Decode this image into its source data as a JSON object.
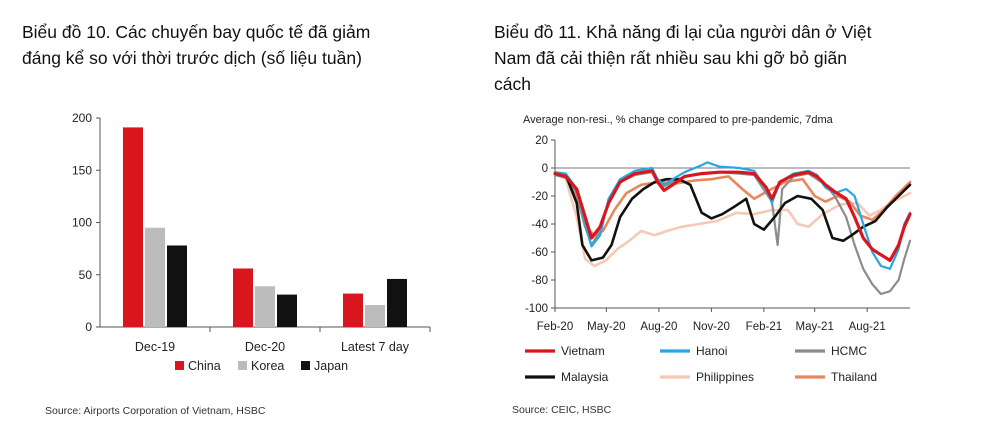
{
  "headings": {
    "left_line1": "Biểu đồ 10. Các chuyến bay quốc tế đã giảm",
    "left_line2": "đáng kể so với thời trước dịch (số liệu tuần)",
    "right_line1": "Biểu đồ 11. Khả năng đi lại của người dân ở Việt",
    "right_line2": "Nam đã cải thiện rất nhiều sau khi gỡ bỏ giãn",
    "right_line3": "cách"
  },
  "sources": {
    "left": "Source: Airports Corporation of Vietnam, HSBC",
    "right": "Source: CEIC, HSBC"
  },
  "colors": {
    "china": "#d9151e",
    "korea": "#bcbcbc",
    "japan": "#111111",
    "vietnam": "#d9151e",
    "hanoi": "#29a8e0",
    "hcmc": "#8c8c8c",
    "malaysia": "#111111",
    "philippines": "#f5c9b5",
    "thailand": "#e9875c"
  },
  "chart_data": [
    {
      "type": "bar",
      "categories": [
        "Dec-19",
        "Dec-20",
        "Latest 7 day"
      ],
      "series": [
        {
          "name": "China",
          "color": "#d9151e",
          "values": [
            191,
            56,
            32
          ]
        },
        {
          "name": "Korea",
          "color": "#bcbcbc",
          "values": [
            95,
            39,
            21
          ]
        },
        {
          "name": "Japan",
          "color": "#111111",
          "values": [
            78,
            31,
            46
          ]
        }
      ],
      "ylim": [
        0,
        200
      ],
      "yticks": [
        "0",
        "50",
        "100",
        "150",
        "200"
      ],
      "legend": "bottom"
    },
    {
      "type": "line",
      "subtitle": "Average non-resi., % change compared to pre-pandemic, 7dma",
      "x_ticks": [
        "Feb-20",
        "May-20",
        "Aug-20",
        "Nov-20",
        "Feb-21",
        "May-21",
        "Aug-21"
      ],
      "yticks": [
        "-100",
        "-80",
        "-60",
        "-40",
        "-20",
        "0",
        "20"
      ],
      "ylim": [
        -100,
        20
      ],
      "xlim": [
        "2020-02-01",
        "2021-10-15"
      ],
      "legend": "bottom",
      "series": [
        {
          "name": "Vietnam",
          "color": "#d9151e",
          "width": 3.2,
          "points": [
            [
              "2020-02-01",
              -4
            ],
            [
              "2020-02-20",
              -6
            ],
            [
              "2020-03-10",
              -15
            ],
            [
              "2020-03-25",
              -35
            ],
            [
              "2020-04-05",
              -50
            ],
            [
              "2020-04-20",
              -42
            ],
            [
              "2020-05-05",
              -25
            ],
            [
              "2020-05-25",
              -10
            ],
            [
              "2020-06-20",
              -4
            ],
            [
              "2020-07-20",
              -2
            ],
            [
              "2020-07-30",
              -10
            ],
            [
              "2020-08-10",
              -16
            ],
            [
              "2020-08-25",
              -12
            ],
            [
              "2020-09-15",
              -6
            ],
            [
              "2020-10-15",
              -4
            ],
            [
              "2020-11-15",
              -3
            ],
            [
              "2020-12-20",
              -3
            ],
            [
              "2021-01-15",
              -4
            ],
            [
              "2021-02-05",
              -14
            ],
            [
              "2021-02-15",
              -22
            ],
            [
              "2021-03-01",
              -10
            ],
            [
              "2021-03-25",
              -5
            ],
            [
              "2021-04-20",
              -3
            ],
            [
              "2021-05-05",
              -6
            ],
            [
              "2021-05-20",
              -12
            ],
            [
              "2021-06-05",
              -17
            ],
            [
              "2021-06-25",
              -22
            ],
            [
              "2021-07-10",
              -35
            ],
            [
              "2021-07-25",
              -50
            ],
            [
              "2021-08-10",
              -58
            ],
            [
              "2021-08-25",
              -62
            ],
            [
              "2021-09-10",
              -66
            ],
            [
              "2021-09-25",
              -55
            ],
            [
              "2021-10-05",
              -42
            ],
            [
              "2021-10-15",
              -33
            ]
          ]
        },
        {
          "name": "Hanoi",
          "color": "#29a8e0",
          "width": 2.2,
          "points": [
            [
              "2020-02-01",
              -3
            ],
            [
              "2020-02-20",
              -4
            ],
            [
              "2020-03-10",
              -15
            ],
            [
              "2020-03-25",
              -40
            ],
            [
              "2020-04-05",
              -56
            ],
            [
              "2020-04-20",
              -48
            ],
            [
              "2020-05-05",
              -22
            ],
            [
              "2020-05-25",
              -8
            ],
            [
              "2020-06-20",
              -2
            ],
            [
              "2020-07-20",
              0
            ],
            [
              "2020-07-30",
              -8
            ],
            [
              "2020-08-10",
              -12
            ],
            [
              "2020-08-25",
              -8
            ],
            [
              "2020-09-15",
              -3
            ],
            [
              "2020-10-15",
              2
            ],
            [
              "2020-10-25",
              4
            ],
            [
              "2020-11-15",
              1
            ],
            [
              "2020-12-20",
              0
            ],
            [
              "2021-01-15",
              -2
            ],
            [
              "2021-02-05",
              -15
            ],
            [
              "2021-02-15",
              -25
            ],
            [
              "2021-03-01",
              -10
            ],
            [
              "2021-03-25",
              -4
            ],
            [
              "2021-04-20",
              -2
            ],
            [
              "2021-05-05",
              -5
            ],
            [
              "2021-05-20",
              -14
            ],
            [
              "2021-06-05",
              -18
            ],
            [
              "2021-06-25",
              -15
            ],
            [
              "2021-07-10",
              -20
            ],
            [
              "2021-07-25",
              -40
            ],
            [
              "2021-08-10",
              -60
            ],
            [
              "2021-08-25",
              -70
            ],
            [
              "2021-09-10",
              -72
            ],
            [
              "2021-09-25",
              -58
            ],
            [
              "2021-10-05",
              -40
            ],
            [
              "2021-10-15",
              -32
            ]
          ]
        },
        {
          "name": "HCMC",
          "color": "#8c8c8c",
          "width": 2.2,
          "points": [
            [
              "2020-02-01",
              -5
            ],
            [
              "2020-02-20",
              -7
            ],
            [
              "2020-03-10",
              -18
            ],
            [
              "2020-03-25",
              -42
            ],
            [
              "2020-04-05",
              -55
            ],
            [
              "2020-04-20",
              -45
            ],
            [
              "2020-05-05",
              -24
            ],
            [
              "2020-05-25",
              -10
            ],
            [
              "2020-06-20",
              -5
            ],
            [
              "2020-07-20",
              -3
            ],
            [
              "2020-07-30",
              -8
            ],
            [
              "2020-08-10",
              -13
            ],
            [
              "2020-08-25",
              -10
            ],
            [
              "2020-09-15",
              -6
            ],
            [
              "2020-10-15",
              -4
            ],
            [
              "2020-11-15",
              -3
            ],
            [
              "2020-12-20",
              -4
            ],
            [
              "2021-01-15",
              -5
            ],
            [
              "2021-02-05",
              -18
            ],
            [
              "2021-02-15",
              -24
            ],
            [
              "2021-02-25",
              -55
            ],
            [
              "2021-03-05",
              -15
            ],
            [
              "2021-03-25",
              -6
            ],
            [
              "2021-04-20",
              -4
            ],
            [
              "2021-05-05",
              -8
            ],
            [
              "2021-05-20",
              -12
            ],
            [
              "2021-06-05",
              -20
            ],
            [
              "2021-06-25",
              -35
            ],
            [
              "2021-07-10",
              -55
            ],
            [
              "2021-07-25",
              -72
            ],
            [
              "2021-08-10",
              -83
            ],
            [
              "2021-08-25",
              -90
            ],
            [
              "2021-09-10",
              -88
            ],
            [
              "2021-09-25",
              -80
            ],
            [
              "2021-10-05",
              -65
            ],
            [
              "2021-10-15",
              -52
            ]
          ]
        },
        {
          "name": "Malaysia",
          "color": "#111111",
          "width": 2.6,
          "points": [
            [
              "2020-02-01",
              -4
            ],
            [
              "2020-02-20",
              -5
            ],
            [
              "2020-03-10",
              -25
            ],
            [
              "2020-03-20",
              -55
            ],
            [
              "2020-04-05",
              -66
            ],
            [
              "2020-04-25",
              -64
            ],
            [
              "2020-05-10",
              -55
            ],
            [
              "2020-05-25",
              -35
            ],
            [
              "2020-06-15",
              -22
            ],
            [
              "2020-07-05",
              -15
            ],
            [
              "2020-07-25",
              -10
            ],
            [
              "2020-08-15",
              -8
            ],
            [
              "2020-09-05",
              -8
            ],
            [
              "2020-09-25",
              -12
            ],
            [
              "2020-10-15",
              -32
            ],
            [
              "2020-11-01",
              -36
            ],
            [
              "2020-11-20",
              -33
            ],
            [
              "2020-12-10",
              -28
            ],
            [
              "2021-01-01",
              -22
            ],
            [
              "2021-01-15",
              -40
            ],
            [
              "2021-02-01",
              -44
            ],
            [
              "2021-02-20",
              -35
            ],
            [
              "2021-03-10",
              -25
            ],
            [
              "2021-04-01",
              -20
            ],
            [
              "2021-04-25",
              -22
            ],
            [
              "2021-05-15",
              -30
            ],
            [
              "2021-06-01",
              -50
            ],
            [
              "2021-06-20",
              -52
            ],
            [
              "2021-07-05",
              -48
            ],
            [
              "2021-07-25",
              -42
            ],
            [
              "2021-08-15",
              -38
            ],
            [
              "2021-09-05",
              -28
            ],
            [
              "2021-09-25",
              -20
            ],
            [
              "2021-10-15",
              -12
            ]
          ]
        },
        {
          "name": "Philippines",
          "color": "#f5c9b5",
          "width": 2.6,
          "points": [
            [
              "2020-02-01",
              -3
            ],
            [
              "2020-02-20",
              -8
            ],
            [
              "2020-03-10",
              -35
            ],
            [
              "2020-03-25",
              -65
            ],
            [
              "2020-04-10",
              -70
            ],
            [
              "2020-04-30",
              -66
            ],
            [
              "2020-05-20",
              -58
            ],
            [
              "2020-06-10",
              -52
            ],
            [
              "2020-07-01",
              -45
            ],
            [
              "2020-07-25",
              -48
            ],
            [
              "2020-08-15",
              -45
            ],
            [
              "2020-09-10",
              -42
            ],
            [
              "2020-10-10",
              -40
            ],
            [
              "2020-11-10",
              -38
            ],
            [
              "2020-12-15",
              -32
            ],
            [
              "2021-01-15",
              -33
            ],
            [
              "2021-02-15",
              -30
            ],
            [
              "2021-03-15",
              -30
            ],
            [
              "2021-04-01",
              -40
            ],
            [
              "2021-04-20",
              -42
            ],
            [
              "2021-05-15",
              -33
            ],
            [
              "2021-06-15",
              -26
            ],
            [
              "2021-07-15",
              -25
            ],
            [
              "2021-08-05",
              -34
            ],
            [
              "2021-08-25",
              -30
            ],
            [
              "2021-09-15",
              -24
            ],
            [
              "2021-10-15",
              -18
            ]
          ]
        },
        {
          "name": "Thailand",
          "color": "#e9875c",
          "width": 2.6,
          "points": [
            [
              "2020-02-01",
              -3
            ],
            [
              "2020-02-20",
              -6
            ],
            [
              "2020-03-10",
              -20
            ],
            [
              "2020-03-25",
              -42
            ],
            [
              "2020-04-10",
              -48
            ],
            [
              "2020-04-25",
              -45
            ],
            [
              "2020-05-15",
              -30
            ],
            [
              "2020-06-05",
              -18
            ],
            [
              "2020-07-01",
              -12
            ],
            [
              "2020-08-01",
              -10
            ],
            [
              "2020-09-01",
              -11
            ],
            [
              "2020-10-01",
              -9
            ],
            [
              "2020-11-01",
              -8
            ],
            [
              "2020-12-01",
              -6
            ],
            [
              "2020-12-25",
              -15
            ],
            [
              "2021-01-15",
              -22
            ],
            [
              "2021-02-10",
              -16
            ],
            [
              "2021-03-10",
              -10
            ],
            [
              "2021-04-10",
              -8
            ],
            [
              "2021-05-01",
              -20
            ],
            [
              "2021-05-20",
              -24
            ],
            [
              "2021-06-10",
              -20
            ],
            [
              "2021-07-01",
              -24
            ],
            [
              "2021-07-20",
              -34
            ],
            [
              "2021-08-10",
              -37
            ],
            [
              "2021-08-30",
              -30
            ],
            [
              "2021-09-20",
              -20
            ],
            [
              "2021-10-15",
              -10
            ]
          ]
        }
      ]
    }
  ]
}
